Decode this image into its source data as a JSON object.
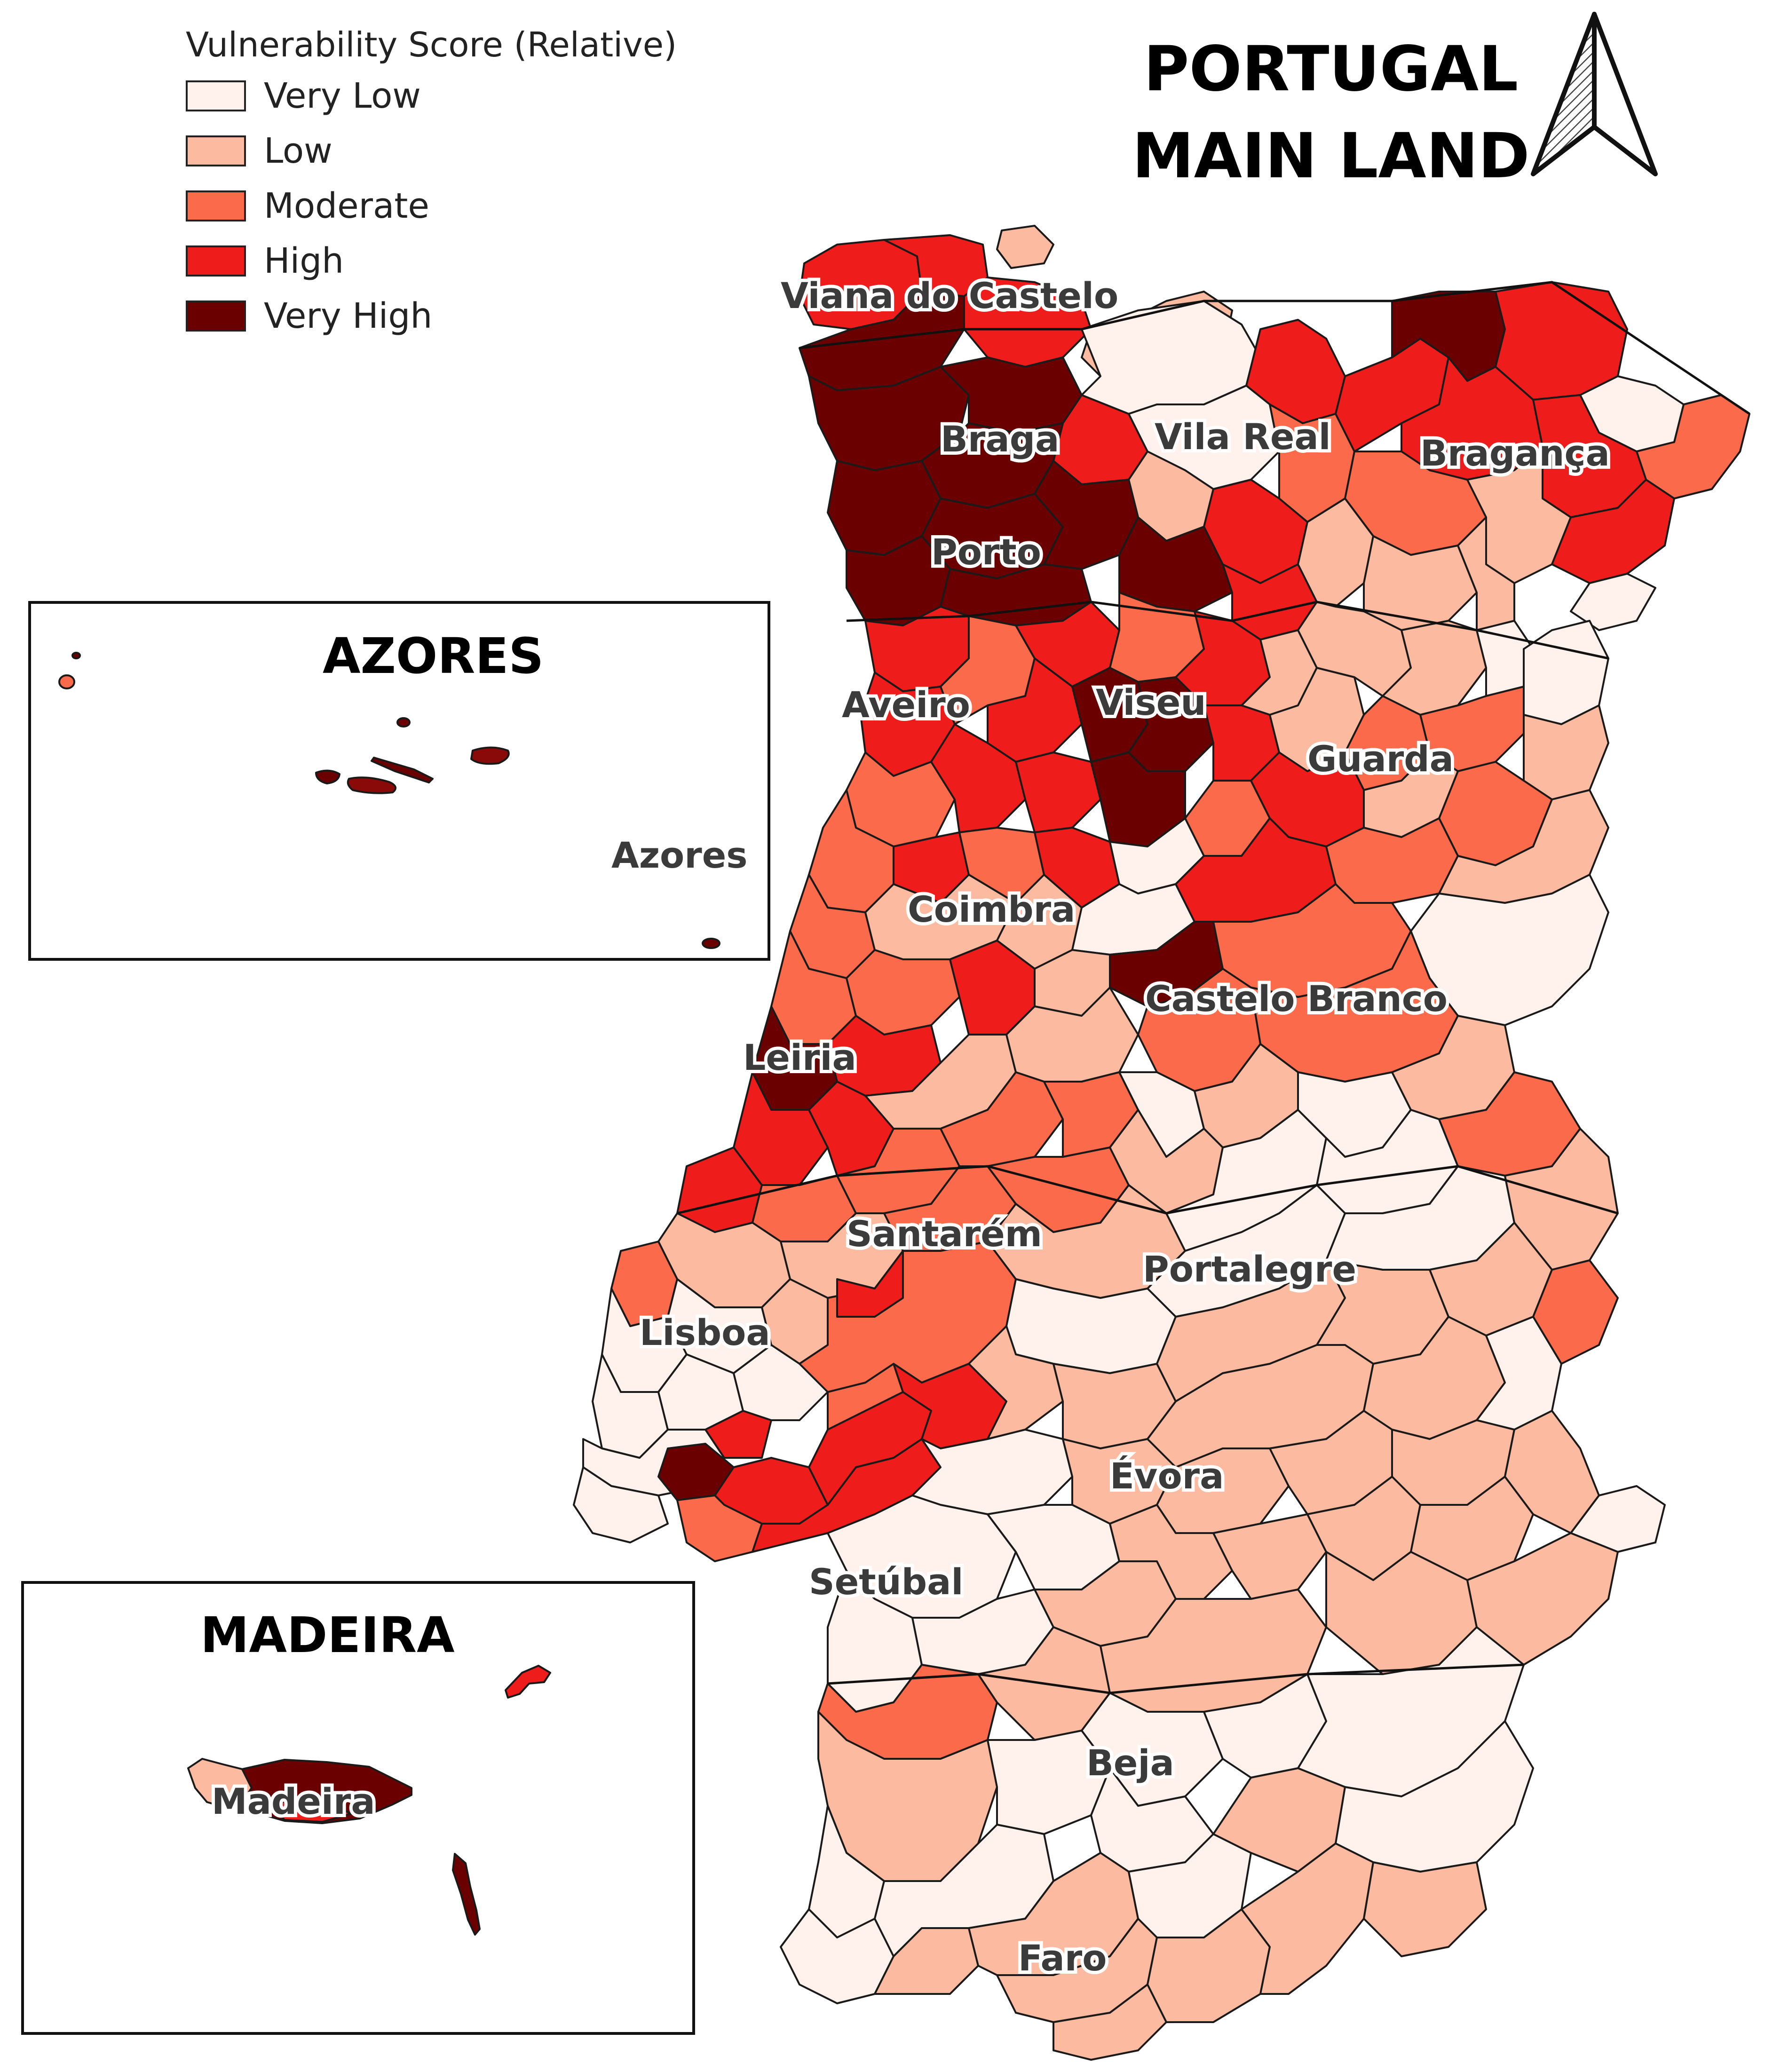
{
  "legend": {
    "title": "Vulnerability Score (Relative)",
    "classes": [
      {
        "label": "Very Low",
        "color": "#fff1ec"
      },
      {
        "label": "Low",
        "color": "#fcbba1"
      },
      {
        "label": "Moderate",
        "color": "#fb6a4a"
      },
      {
        "label": "High",
        "color": "#ef1c1c"
      },
      {
        "label": "Very High",
        "color": "#6b0000"
      }
    ]
  },
  "title": {
    "line1": "PORTUGAL",
    "line2": "MAIN LAND"
  },
  "north_arrow_icon": "north-arrow-icon",
  "insets": {
    "azores": {
      "title": "AZORES",
      "label": "Azores"
    },
    "madeira": {
      "title": "MADEIRA",
      "label": "Madeira"
    }
  },
  "districts": {
    "viana": "Viana do Castelo",
    "braga": "Braga",
    "vila_real": "Vila Real",
    "braganca": "Bragança",
    "porto": "Porto",
    "aveiro": "Aveiro",
    "viseu": "Viseu",
    "guarda": "Guarda",
    "coimbra": "Coimbra",
    "castelo_branco": "Castelo Branco",
    "leiria": "Leiria",
    "santarem": "Santarém",
    "portalegre": "Portalegre",
    "lisboa": "Lisboa",
    "evora": "Évora",
    "setubal": "Setúbal",
    "beja": "Beja",
    "faro": "Faro"
  }
}
